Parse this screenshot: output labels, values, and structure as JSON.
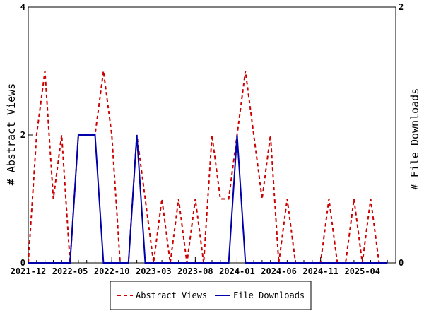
{
  "chart_data": {
    "type": "line",
    "title": "",
    "ylabel_left": "# Abstract Views",
    "ylabel_right": "# File Downloads",
    "ylim_left": [
      0,
      4
    ],
    "ylim_right": [
      0,
      2
    ],
    "yticks_left": [
      0,
      2,
      4
    ],
    "yticks_right": [
      0,
      2
    ],
    "x_tick_labels": [
      "2021-12",
      "2022-05",
      "2022-10",
      "2023-03",
      "2023-08",
      "2024-01",
      "2024-06",
      "2024-11",
      "2025-04"
    ],
    "x": [
      "2021-12",
      "2022-01",
      "2022-02",
      "2022-03",
      "2022-04",
      "2022-05",
      "2022-06",
      "2022-07",
      "2022-08",
      "2022-09",
      "2022-10",
      "2022-11",
      "2022-12",
      "2023-01",
      "2023-02",
      "2023-03",
      "2023-04",
      "2023-05",
      "2023-06",
      "2023-07",
      "2023-08",
      "2023-09",
      "2023-10",
      "2023-11",
      "2023-12",
      "2024-01",
      "2024-02",
      "2024-03",
      "2024-04",
      "2024-05",
      "2024-06",
      "2024-07",
      "2024-08",
      "2024-09",
      "2024-10",
      "2024-11",
      "2024-12",
      "2025-01",
      "2025-02",
      "2025-03",
      "2025-04",
      "2025-05",
      "2025-06",
      "2025-07"
    ],
    "legend_position": "bottom",
    "grid": false,
    "series": [
      {
        "name": "Abstract Views",
        "axis": "left",
        "color": "#cc0000",
        "dash": "dashed",
        "values": [
          0,
          2,
          3,
          1,
          2,
          0,
          2,
          2,
          2,
          3,
          2,
          0,
          0,
          2,
          1,
          0,
          1,
          0,
          1,
          0,
          1,
          0,
          2,
          1,
          1,
          2,
          3,
          2,
          1,
          2,
          0,
          1,
          0,
          0,
          0,
          0,
          1,
          0,
          0,
          1,
          0,
          1,
          0,
          0
        ]
      },
      {
        "name": "File Downloads",
        "axis": "right",
        "color": "#0000aa",
        "dash": "solid",
        "values": [
          0,
          0,
          0,
          0,
          0,
          0,
          1,
          1,
          1,
          0,
          0,
          0,
          0,
          1,
          0,
          0,
          0,
          0,
          0,
          0,
          0,
          0,
          0,
          0,
          0,
          1,
          0,
          0,
          0,
          0,
          0,
          0,
          0,
          0,
          0,
          0,
          0,
          0,
          0,
          0,
          0,
          0,
          0,
          0
        ]
      }
    ]
  }
}
